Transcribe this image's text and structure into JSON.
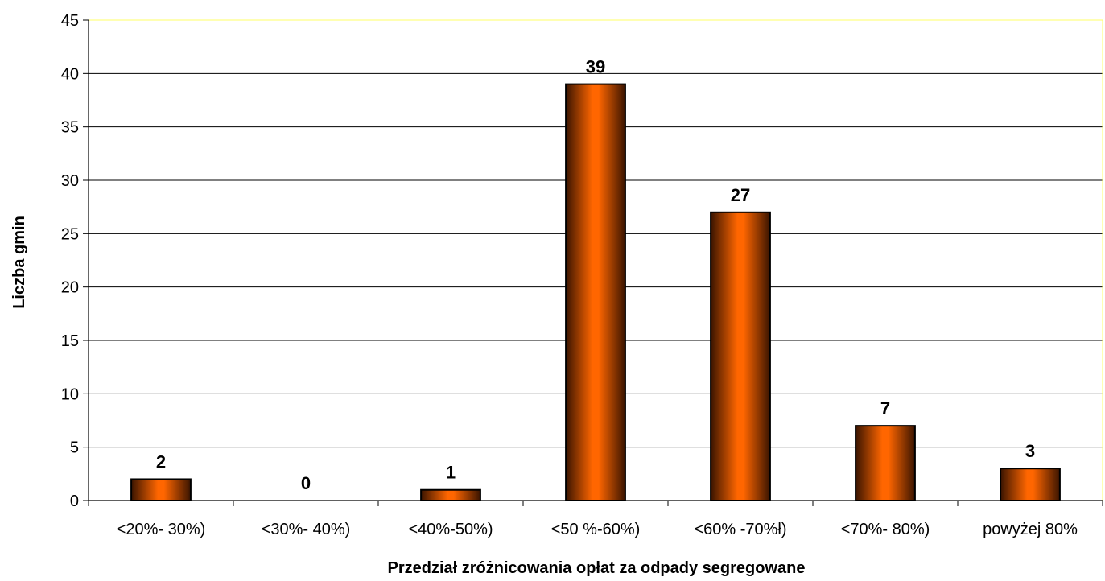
{
  "chart_data": {
    "type": "bar",
    "title": "",
    "xlabel": "Przedział zróżnicowania opłat za odpady segregowane",
    "ylabel": "Liczba gmin",
    "categories": [
      "<20%- 30%)",
      "<30%- 40%)",
      "<40%-50%)",
      "<50 %-60%)",
      "<60% -70%ł)",
      "<70%- 80%)",
      "powyżej 80%"
    ],
    "values": [
      2,
      0,
      1,
      39,
      27,
      7,
      3
    ],
    "data_labels": [
      "2",
      "0",
      "1",
      "39",
      "27",
      "7",
      "3"
    ],
    "ylim": [
      0,
      45
    ],
    "y_ticks": [
      0,
      5,
      10,
      15,
      20,
      25,
      30,
      35,
      40,
      45
    ],
    "y_tick_labels": [
      "0",
      "5",
      "10",
      "15",
      "20",
      "25",
      "30",
      "35",
      "40",
      "45"
    ],
    "grid": true,
    "legend": "none",
    "colors": {
      "bar_fill_center": "#ff6600",
      "bar_fill_edge": "#3a1400",
      "bar_outline": "#000000",
      "gridline": "#000000",
      "plot_border_top": "#ffff66"
    }
  }
}
